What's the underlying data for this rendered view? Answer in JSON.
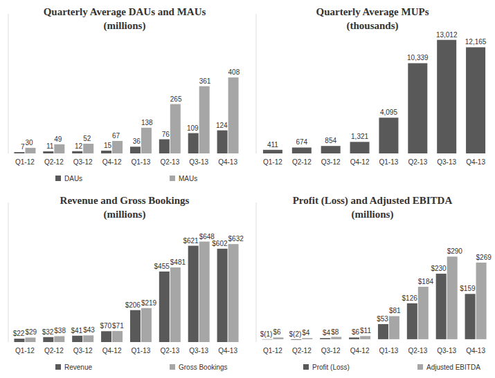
{
  "chart_data": [
    {
      "type": "bar",
      "title": "Quarterly Average DAUs and MAUs",
      "subtitle": "(millions)",
      "categories": [
        "Q1-12",
        "Q2-12",
        "Q3-12",
        "Q4-12",
        "Q1-13",
        "Q2-13",
        "Q3-13",
        "Q4-13"
      ],
      "series": [
        {
          "name": "DAUs",
          "color": "#595959",
          "values": [
            7,
            11,
            12,
            15,
            36,
            76,
            109,
            124
          ]
        },
        {
          "name": "MAUs",
          "color": "#a6a6a6",
          "values": [
            30,
            49,
            52,
            67,
            138,
            265,
            361,
            408
          ]
        }
      ],
      "ylim": [
        0,
        750
      ],
      "data_labels": true,
      "tick_labels": "x",
      "legend": "bottom"
    },
    {
      "type": "bar",
      "title": "Quarterly Average MUPs",
      "subtitle": "(thousands)",
      "categories": [
        "Q1-12",
        "Q2-12",
        "Q3-12",
        "Q4-12",
        "Q1-13",
        "Q2-13",
        "Q3-13",
        "Q4-13"
      ],
      "values": [
        411,
        674,
        854,
        1321,
        4095,
        10339,
        13012,
        12165
      ],
      "value_labels": [
        "411",
        "674",
        "854",
        "1,321",
        "4,095",
        "10,339",
        "13,012",
        "12,165"
      ],
      "color": "#595959",
      "ylim": [
        0,
        16000
      ],
      "data_labels": true,
      "tick_labels": "x"
    },
    {
      "type": "bar",
      "title": "Revenue and Gross Bookings",
      "subtitle": "(millions)",
      "categories": [
        "Q1-12",
        "Q2-12",
        "Q3-12",
        "Q4-12",
        "Q1-13",
        "Q2-13",
        "Q3-13",
        "Q4-13"
      ],
      "series": [
        {
          "name": "Revenue",
          "color": "#595959",
          "values": [
            22,
            32,
            41,
            70,
            206,
            455,
            621,
            602
          ],
          "value_labels": [
            "$22",
            "$32",
            "$41",
            "$70",
            "$206",
            "$455",
            "$621",
            "$602"
          ]
        },
        {
          "name": "Gross Bookings",
          "color": "#a6a6a6",
          "values": [
            29,
            38,
            43,
            71,
            219,
            481,
            648,
            632
          ],
          "value_labels": [
            "$29",
            "$38",
            "$43",
            "$71",
            "$219",
            "$481",
            "$648",
            "$632"
          ]
        }
      ],
      "ylim": [
        0,
        900
      ],
      "data_labels": true,
      "tick_labels": "x",
      "legend": "bottom"
    },
    {
      "type": "bar",
      "title": "Profit (Loss) and Adjusted EBITDA",
      "subtitle": "(millions)",
      "categories": [
        "Q1-12",
        "Q2-12",
        "Q3-12",
        "Q4-12",
        "Q1-13",
        "Q2-13",
        "Q3-13",
        "Q4-13"
      ],
      "series": [
        {
          "name": "Profit (Loss)",
          "color": "#595959",
          "values": [
            -1,
            -2,
            4,
            6,
            53,
            126,
            230,
            159
          ],
          "value_labels": [
            "$(1)",
            "$(2)",
            "$4",
            "$6",
            "$53",
            "$126",
            "$230",
            "$159"
          ]
        },
        {
          "name": "Adjusted EBITDA",
          "color": "#a6a6a6",
          "values": [
            6,
            4,
            8,
            11,
            81,
            184,
            290,
            269
          ],
          "value_labels": [
            "$6",
            "$4",
            "$8",
            "$11",
            "$81",
            "$184",
            "$290",
            "$269"
          ]
        }
      ],
      "ylim": [
        -10,
        480
      ],
      "data_labels": true,
      "tick_labels": "x",
      "legend": "bottom"
    }
  ]
}
